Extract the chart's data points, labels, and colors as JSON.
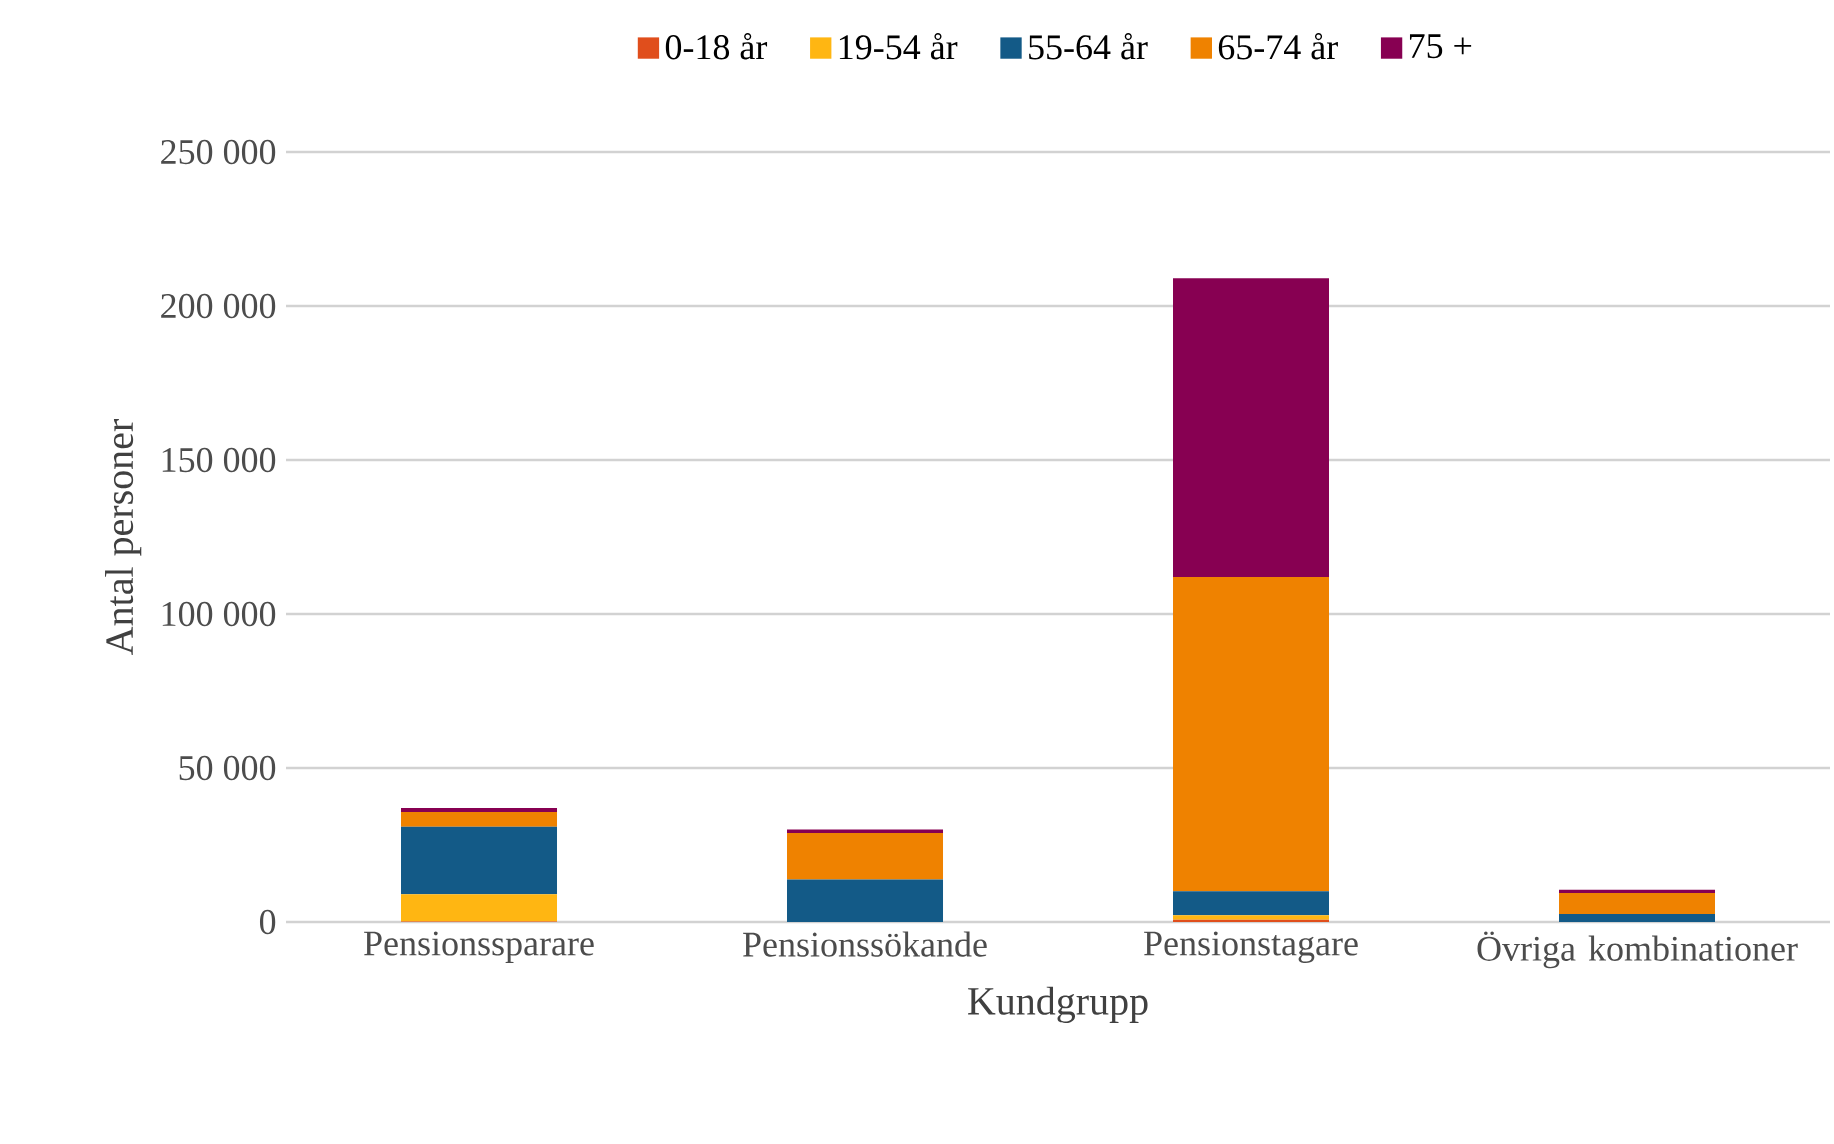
{
  "chart_data": {
    "type": "bar",
    "stacked": true,
    "xlabel": "Kundgrupp",
    "ylabel": "Antal personer",
    "categories": [
      "Pensionssparare",
      "Pensionssökande",
      "Pensionstagare",
      "Övriga kombinationer"
    ],
    "series": [
      {
        "name": "0-18 år",
        "color": "#e04e1c",
        "values": [
          200,
          0,
          700,
          0
        ]
      },
      {
        "name": "19-54 år",
        "color": "#ffb612",
        "values": [
          8800,
          0,
          1500,
          0
        ]
      },
      {
        "name": "55-64 år",
        "color": "#135a87",
        "values": [
          21900,
          13800,
          7800,
          2600
        ]
      },
      {
        "name": "65-74 år",
        "color": "#ef8200",
        "values": [
          4800,
          15100,
          102000,
          6800
        ]
      },
      {
        "name": "75 +",
        "color": "#870052",
        "values": [
          1300,
          1100,
          97000,
          1100
        ]
      }
    ],
    "ylim": [
      0,
      250000
    ],
    "yticks": [
      {
        "value": 0,
        "label": "0"
      },
      {
        "value": 50000,
        "label": "50 000"
      },
      {
        "value": 100000,
        "label": "100 000"
      },
      {
        "value": 150000,
        "label": "150 000"
      },
      {
        "value": 200000,
        "label": "200 000"
      },
      {
        "value": 250000,
        "label": "250 000"
      }
    ],
    "grid": "y",
    "legend": "top"
  }
}
